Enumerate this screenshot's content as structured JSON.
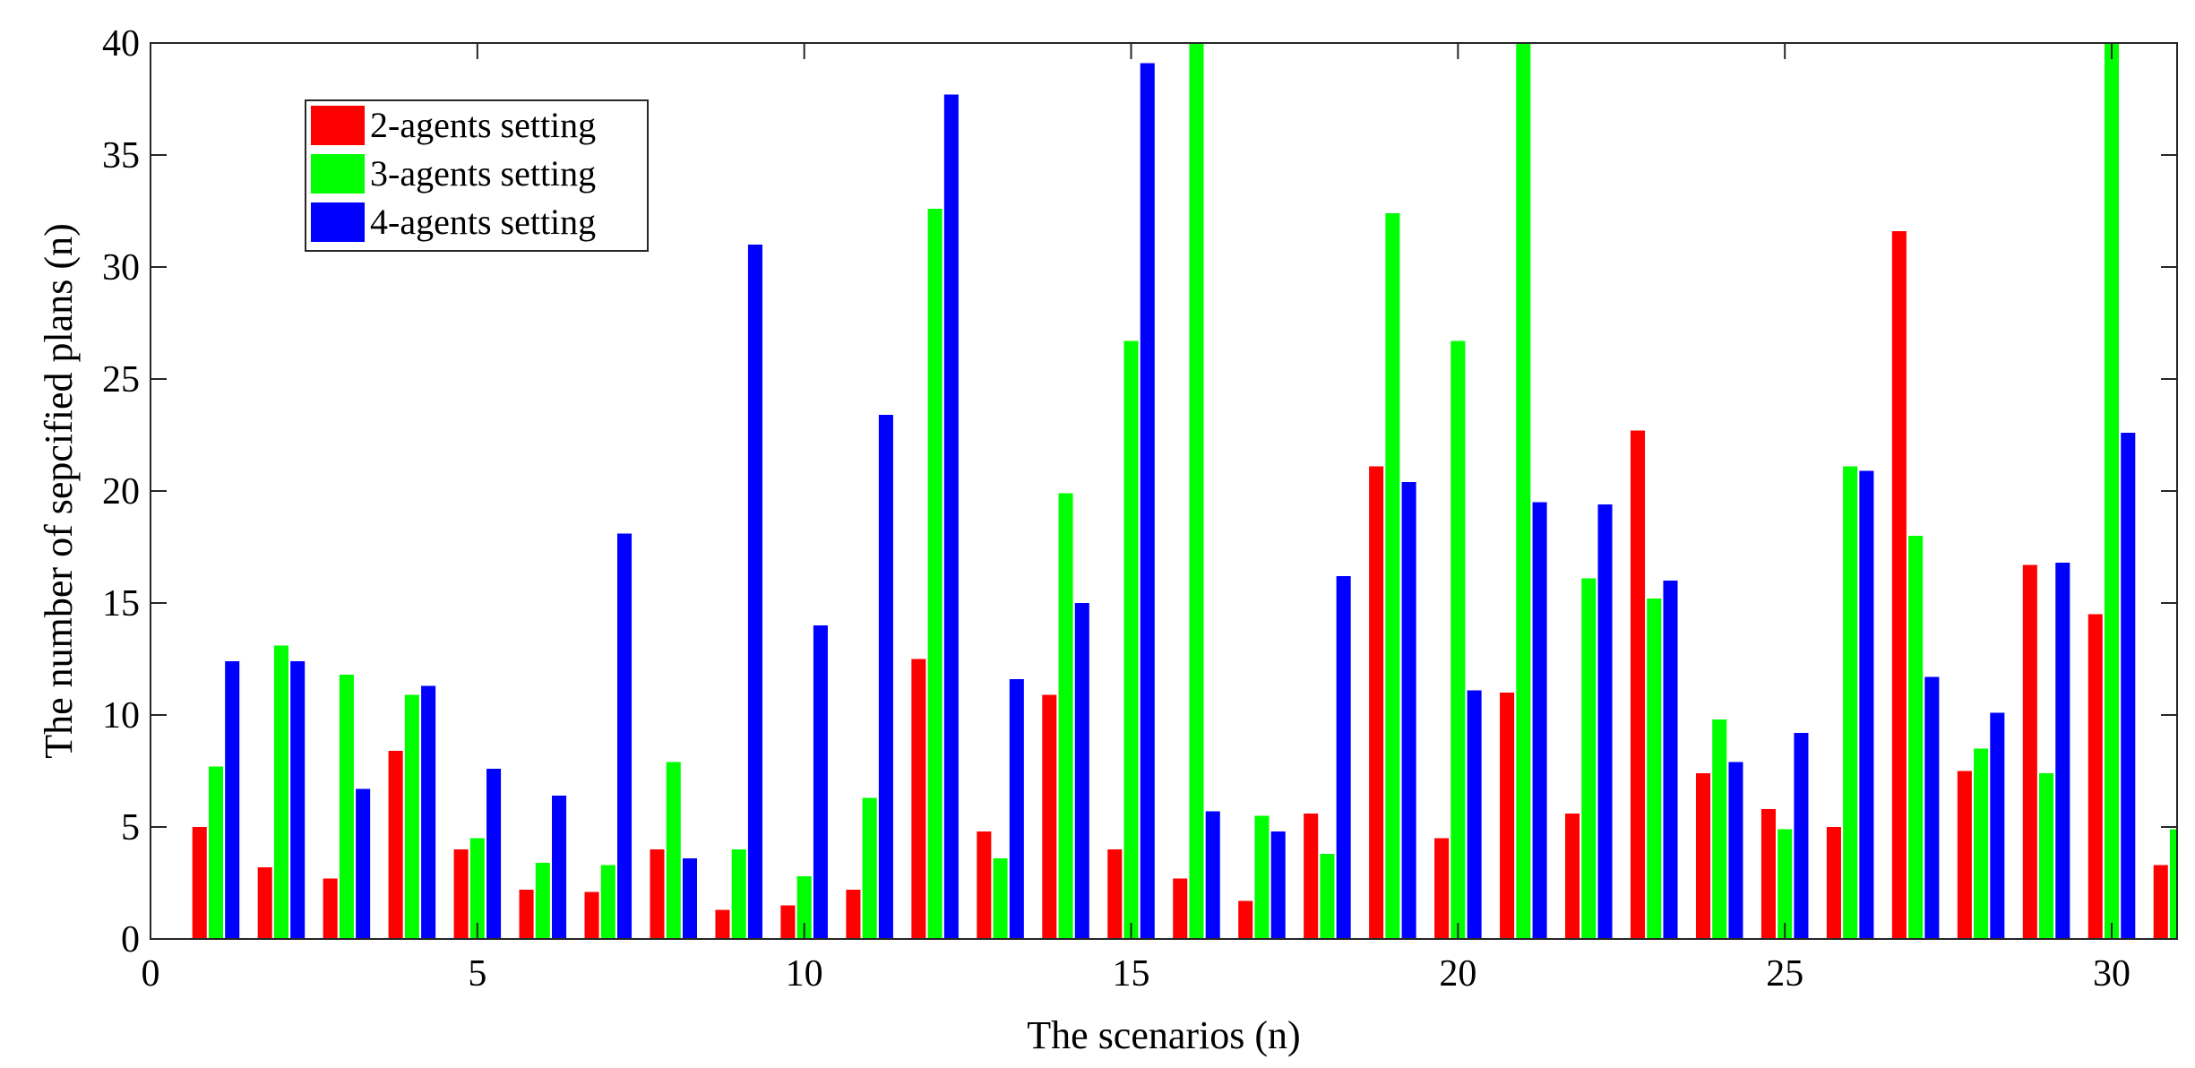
{
  "chart_data": {
    "type": "bar",
    "title": "",
    "xlabel": "The scenarios (n)",
    "ylabel": "The number of sepcified plans (n)",
    "xlim": [
      0,
      31
    ],
    "ylim": [
      0,
      40
    ],
    "xticks": [
      0,
      5,
      10,
      15,
      20,
      25,
      30
    ],
    "yticks": [
      0,
      5,
      10,
      15,
      20,
      25,
      30,
      35,
      40
    ],
    "grid": false,
    "legend_position": "top-left",
    "categories": [
      1,
      2,
      3,
      4,
      5,
      6,
      7,
      8,
      9,
      10,
      11,
      12,
      13,
      14,
      15,
      16,
      17,
      18,
      19,
      20,
      21,
      22,
      23,
      24,
      25,
      26,
      27,
      28,
      29,
      30,
      31
    ],
    "series": [
      {
        "name": "2-agents setting",
        "color": "#ff0000",
        "values": [
          5.0,
          3.2,
          2.7,
          8.4,
          4.0,
          2.2,
          2.1,
          4.0,
          1.3,
          1.5,
          2.2,
          12.5,
          4.8,
          10.9,
          4.0,
          2.7,
          1.7,
          5.6,
          21.1,
          4.5,
          11.0,
          5.6,
          22.7,
          7.4,
          5.8,
          5.0,
          31.6,
          7.5,
          16.7,
          14.5,
          3.3
        ]
      },
      {
        "name": "3-agents setting",
        "color": "#00ff00",
        "values": [
          7.7,
          13.1,
          11.8,
          10.9,
          4.5,
          3.4,
          3.3,
          7.9,
          4.0,
          2.8,
          6.3,
          32.6,
          3.6,
          19.9,
          26.7,
          40.0,
          5.5,
          3.8,
          32.4,
          26.7,
          40.0,
          16.1,
          15.2,
          9.8,
          4.9,
          21.1,
          18.0,
          8.5,
          7.4,
          40.0,
          4.9
        ]
      },
      {
        "name": "4-agents setting",
        "color": "#0000ff",
        "values": [
          12.4,
          12.4,
          6.7,
          11.3,
          7.6,
          6.4,
          18.1,
          3.6,
          31.0,
          14.0,
          23.4,
          37.7,
          11.6,
          15.0,
          39.1,
          5.7,
          4.8,
          16.2,
          20.4,
          11.1,
          19.5,
          19.4,
          16.0,
          7.9,
          9.2,
          20.9,
          11.7,
          10.1,
          16.8,
          22.6,
          0
        ]
      }
    ]
  }
}
